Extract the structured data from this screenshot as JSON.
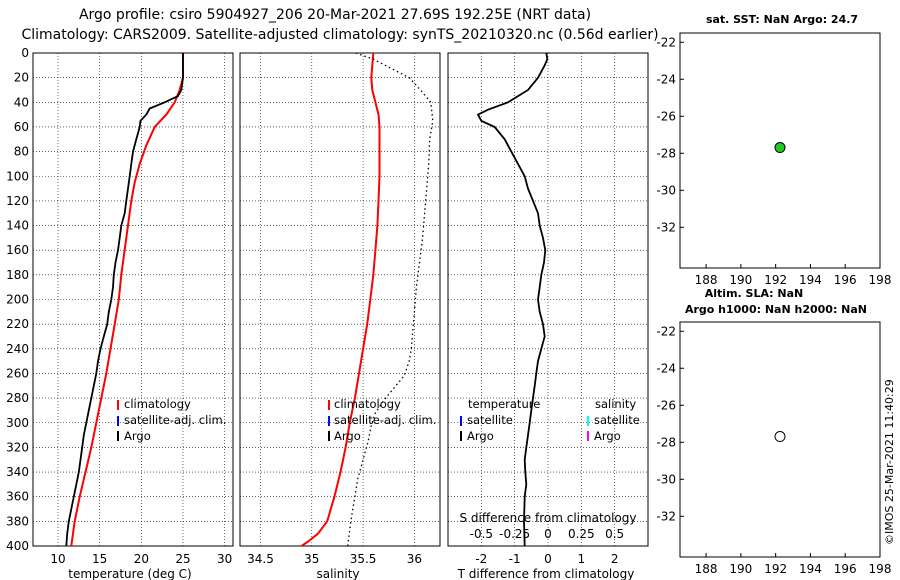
{
  "header": {
    "line1": "Argo profile: csiro 5904927_206 20-Mar-2021 27.69S 192.25E (NRT data)",
    "line2": "Climatology: CARS2009. Satellite-adjusted climatology: synTS_20210320.nc (0.56d earlier)"
  },
  "credit": "©IMOS 25-Mar-2021 11:40:29",
  "colors": {
    "climatology": "#ff0000",
    "satellite": "#0000ff",
    "argo": "#000000",
    "s_satellite": "#00ffff",
    "s_argo": "#ff00ff",
    "map_marker_fill": "#22cc22"
  },
  "chart_data": [
    {
      "id": "temperature",
      "type": "line",
      "xlabel": "temperature (deg C)",
      "ylabel": "",
      "xlim": [
        7,
        31
      ],
      "xticks": [
        "10",
        "15",
        "20",
        "25",
        "30"
      ],
      "xtick_values": [
        10,
        15,
        20,
        25,
        30
      ],
      "ylim": [
        400,
        0
      ],
      "yticks": [
        "0",
        "20",
        "40",
        "60",
        "80",
        "100",
        "120",
        "140",
        "160",
        "180",
        "200",
        "220",
        "240",
        "260",
        "280",
        "300",
        "320",
        "340",
        "360",
        "380",
        "400"
      ],
      "grid": true,
      "legend": {
        "position": "bottom-right",
        "entries": [
          "climatology",
          "satellite-adj. clim.",
          "Argo"
        ]
      },
      "series": [
        {
          "name": "climatology",
          "style": "solid",
          "color": "#ff0000",
          "x": [
            25.0,
            25.0,
            24.6,
            24.0,
            23.0,
            21.6,
            20.6,
            19.8,
            19.2,
            18.8,
            18.5,
            18.2,
            17.9,
            17.6,
            17.3,
            16.8,
            16.3,
            15.8,
            15.2,
            14.6,
            14.0,
            13.3,
            12.6,
            12.0,
            11.6
          ],
          "y": [
            0,
            20,
            30,
            40,
            50,
            60,
            75,
            90,
            105,
            120,
            135,
            150,
            165,
            180,
            200,
            220,
            240,
            260,
            280,
            300,
            320,
            340,
            360,
            380,
            400
          ]
        },
        {
          "name": "Argo",
          "style": "solid",
          "color": "#000000",
          "x": [
            25.0,
            25.0,
            25.0,
            24.8,
            24.4,
            22.8,
            21.0,
            20.6,
            19.9,
            19.8,
            19.4,
            19.0,
            18.8,
            18.6,
            18.4,
            18.2,
            18.0,
            17.6,
            17.4,
            17.2,
            16.9,
            16.7,
            16.6,
            16.4,
            16.1,
            15.9,
            15.5,
            15.1,
            14.8,
            14.6,
            14.3,
            14.0,
            13.7,
            13.4,
            13.1,
            12.9,
            12.7,
            12.5,
            12.2,
            11.9,
            11.6,
            11.3,
            11.1,
            11.0
          ],
          "y": [
            0,
            10,
            20,
            30,
            35,
            40,
            45,
            50,
            55,
            60,
            70,
            80,
            90,
            100,
            110,
            120,
            130,
            140,
            150,
            160,
            170,
            180,
            190,
            200,
            210,
            220,
            230,
            240,
            250,
            260,
            270,
            280,
            290,
            300,
            310,
            320,
            330,
            340,
            350,
            360,
            370,
            380,
            390,
            400
          ]
        }
      ]
    },
    {
      "id": "salinity",
      "type": "line",
      "xlabel": "salinity",
      "ylabel": "",
      "xlim": [
        34.3,
        36.25
      ],
      "xticks": [
        "34.5",
        "35",
        "35.5",
        "36"
      ],
      "xtick_values": [
        34.5,
        35.0,
        35.5,
        36.0
      ],
      "ylim": [
        400,
        0
      ],
      "grid": true,
      "legend": {
        "position": "bottom-right",
        "entries": [
          "climatology",
          "satellite-adj. clim.",
          "Argo"
        ]
      },
      "series": [
        {
          "name": "climatology",
          "style": "solid",
          "color": "#ff0000",
          "x": [
            35.6,
            35.59,
            35.58,
            35.59,
            35.62,
            35.65,
            35.66,
            35.66,
            35.66,
            35.65,
            35.64,
            35.62,
            35.6,
            35.57,
            35.54,
            35.5,
            35.46,
            35.42,
            35.37,
            35.33,
            35.28,
            35.22,
            35.15,
            35.06,
            34.97,
            34.9
          ],
          "y": [
            0,
            10,
            20,
            30,
            40,
            50,
            60,
            80,
            100,
            120,
            140,
            160,
            180,
            200,
            220,
            240,
            260,
            280,
            300,
            320,
            340,
            360,
            380,
            390,
            396,
            400
          ]
        },
        {
          "name": "Argo",
          "style": "dotted",
          "color": "#000000",
          "x": [
            35.43,
            35.6,
            35.95,
            36.06,
            36.16,
            36.18,
            36.15,
            36.14,
            36.12,
            36.1,
            36.08,
            36.05,
            36.02,
            36.0,
            35.98,
            35.97,
            35.95,
            35.9,
            35.8,
            35.7,
            35.62,
            35.58,
            35.55,
            35.5,
            35.45,
            35.42,
            35.38,
            35.35
          ],
          "y": [
            0,
            5,
            20,
            30,
            40,
            55,
            70,
            90,
            110,
            130,
            150,
            170,
            190,
            210,
            230,
            240,
            250,
            262,
            272,
            282,
            292,
            302,
            315,
            330,
            345,
            360,
            380,
            400
          ]
        }
      ]
    },
    {
      "id": "difference",
      "type": "line",
      "xlabel": "T difference from climatology",
      "top_label": "S difference from climatology",
      "xlim": [
        -3.0,
        3.0
      ],
      "xticks": [
        "-2",
        "-1",
        "0",
        "1",
        "2"
      ],
      "xtick_values": [
        -2,
        -1,
        0,
        1,
        2
      ],
      "s_xticks": [
        "-0.5",
        "-0.25",
        "0",
        "0.25",
        "0.5"
      ],
      "ylim": [
        400,
        0
      ],
      "grid": true,
      "legend": {
        "position": "bottom",
        "temperature_title": "temperature",
        "salinity_title": "salinity",
        "entries": [
          "satellite",
          "Argo"
        ]
      },
      "series": [
        {
          "name": "T Argo - clim",
          "style": "solid",
          "color": "#000000",
          "x": [
            -0.05,
            -0.02,
            -0.1,
            -0.3,
            -0.6,
            -1.2,
            -1.8,
            -2.1,
            -2.0,
            -1.6,
            -1.3,
            -1.1,
            -0.9,
            -0.7,
            -0.6,
            -0.45,
            -0.3,
            -0.25,
            -0.15,
            -0.08,
            -0.12,
            -0.2,
            -0.25,
            -0.3,
            -0.25,
            -0.15,
            -0.1,
            -0.2,
            -0.3,
            -0.35,
            -0.4,
            -0.45,
            -0.5,
            -0.55,
            -0.6,
            -0.65,
            -0.7,
            -0.68,
            -0.65,
            -0.7,
            -0.72,
            -0.7
          ],
          "y": [
            0,
            5,
            10,
            20,
            30,
            40,
            46,
            50,
            55,
            60,
            70,
            80,
            90,
            100,
            110,
            120,
            130,
            140,
            150,
            160,
            170,
            180,
            190,
            200,
            210,
            220,
            230,
            240,
            250,
            260,
            270,
            280,
            290,
            300,
            310,
            320,
            330,
            340,
            350,
            360,
            380,
            400
          ]
        }
      ]
    },
    {
      "id": "map_sst",
      "type": "scatter",
      "title": "sat. SST: NaN Argo: 24.7",
      "xlim": [
        186.5,
        198
      ],
      "ylim": [
        -34.2,
        -21.5
      ],
      "xticks": [
        "188",
        "190",
        "192",
        "194",
        "196",
        "198"
      ],
      "xtick_values": [
        188,
        190,
        192,
        194,
        196,
        198
      ],
      "yticks": [
        "-22",
        "-24",
        "-26",
        "-28",
        "-30",
        "-32"
      ],
      "ytick_values": [
        -22,
        -24,
        -26,
        -28,
        -30,
        -32
      ],
      "points": [
        {
          "x": 192.25,
          "y": -27.69,
          "color": "#22cc22"
        }
      ]
    },
    {
      "id": "map_sla",
      "type": "scatter",
      "title": "Altim. SLA: NaN",
      "subtitle": "Argo h1000: NaN h2000: NaN",
      "xlim": [
        186.5,
        198
      ],
      "ylim": [
        -34.2,
        -21.5
      ],
      "xticks": [
        "188",
        "190",
        "192",
        "194",
        "196",
        "198"
      ],
      "xtick_values": [
        188,
        190,
        192,
        194,
        196,
        198
      ],
      "yticks": [
        "-22",
        "-24",
        "-26",
        "-28",
        "-30",
        "-32"
      ],
      "ytick_values": [
        -22,
        -24,
        -26,
        -28,
        -30,
        -32
      ],
      "points": [
        {
          "x": 192.25,
          "y": -27.69,
          "color": "#ffffff"
        }
      ]
    }
  ]
}
